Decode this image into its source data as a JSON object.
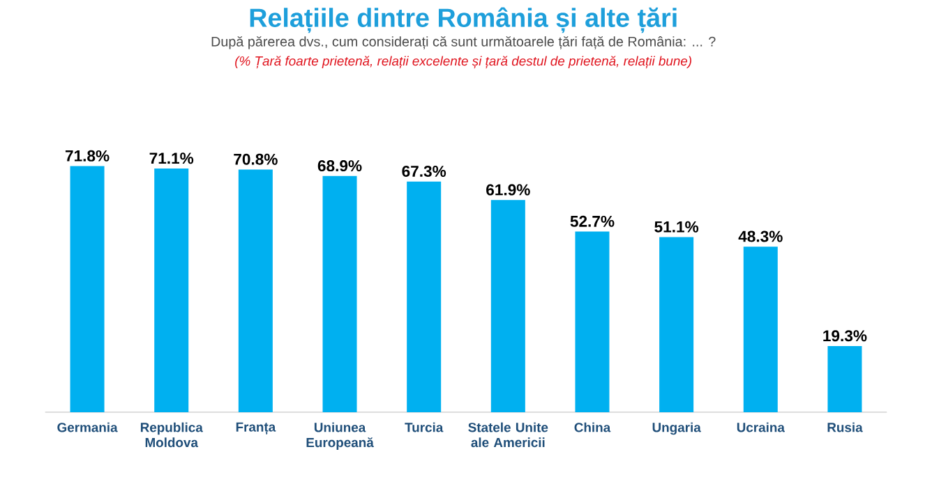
{
  "chart_data": {
    "type": "bar",
    "title": "Relațiile dintre România și alte țări",
    "subtitle": "După părerea dvs., cum considerați că sunt următoarele țări față de România: ... ?",
    "annotations": [
      "(% Țară foarte prietenă, relații excelente și țară destul de prietenă, relații bune)"
    ],
    "categories": [
      "Germania",
      "Republica Moldova",
      "Franța",
      "Uniunea Europeană",
      "Turcia",
      "Statele Unite ale Americii",
      "China",
      "Ungaria",
      "Ucraina",
      "Rusia"
    ],
    "values": [
      71.8,
      71.1,
      70.8,
      68.9,
      67.3,
      61.9,
      52.7,
      51.1,
      48.3,
      19.3
    ],
    "value_labels": [
      "71.8%",
      "71.1%",
      "70.8%",
      "68.9%",
      "67.3%",
      "61.9%",
      "52.7%",
      "51.1%",
      "48.3%",
      "19.3%"
    ],
    "color": "#00b0f0"
  }
}
